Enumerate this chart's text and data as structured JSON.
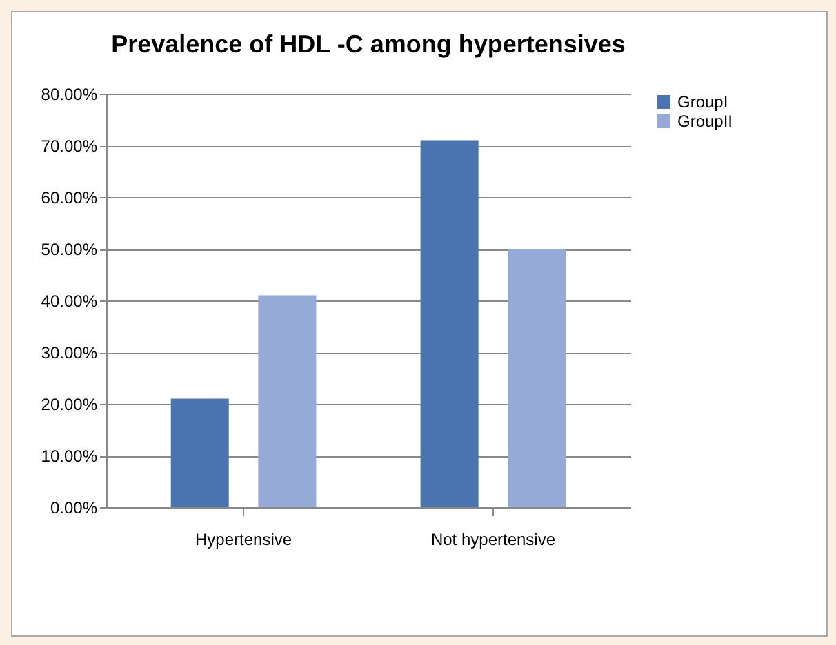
{
  "chart_data": {
    "type": "bar",
    "title": "Prevalence of HDL -C among hypertensives",
    "categories": [
      "Hypertensive",
      "Not hypertensive"
    ],
    "series": [
      {
        "name": "GroupI",
        "color": "#4a74b0",
        "values": [
          21,
          71
        ]
      },
      {
        "name": "GroupII",
        "color": "#95aad6",
        "values": [
          41,
          50
        ]
      }
    ],
    "ylim": [
      0,
      80
    ],
    "yticks": [
      {
        "value": 0,
        "label": "0.00%"
      },
      {
        "value": 10,
        "label": "10.00%"
      },
      {
        "value": 20,
        "label": "20.00%"
      },
      {
        "value": 30,
        "label": "30.00%"
      },
      {
        "value": 40,
        "label": "40.00%"
      },
      {
        "value": 50,
        "label": "50.00%"
      },
      {
        "value": 60,
        "label": "60.00%"
      },
      {
        "value": 70,
        "label": "70.00%"
      },
      {
        "value": 80,
        "label": "80.00%"
      }
    ],
    "grid": "y",
    "legend": "right"
  }
}
